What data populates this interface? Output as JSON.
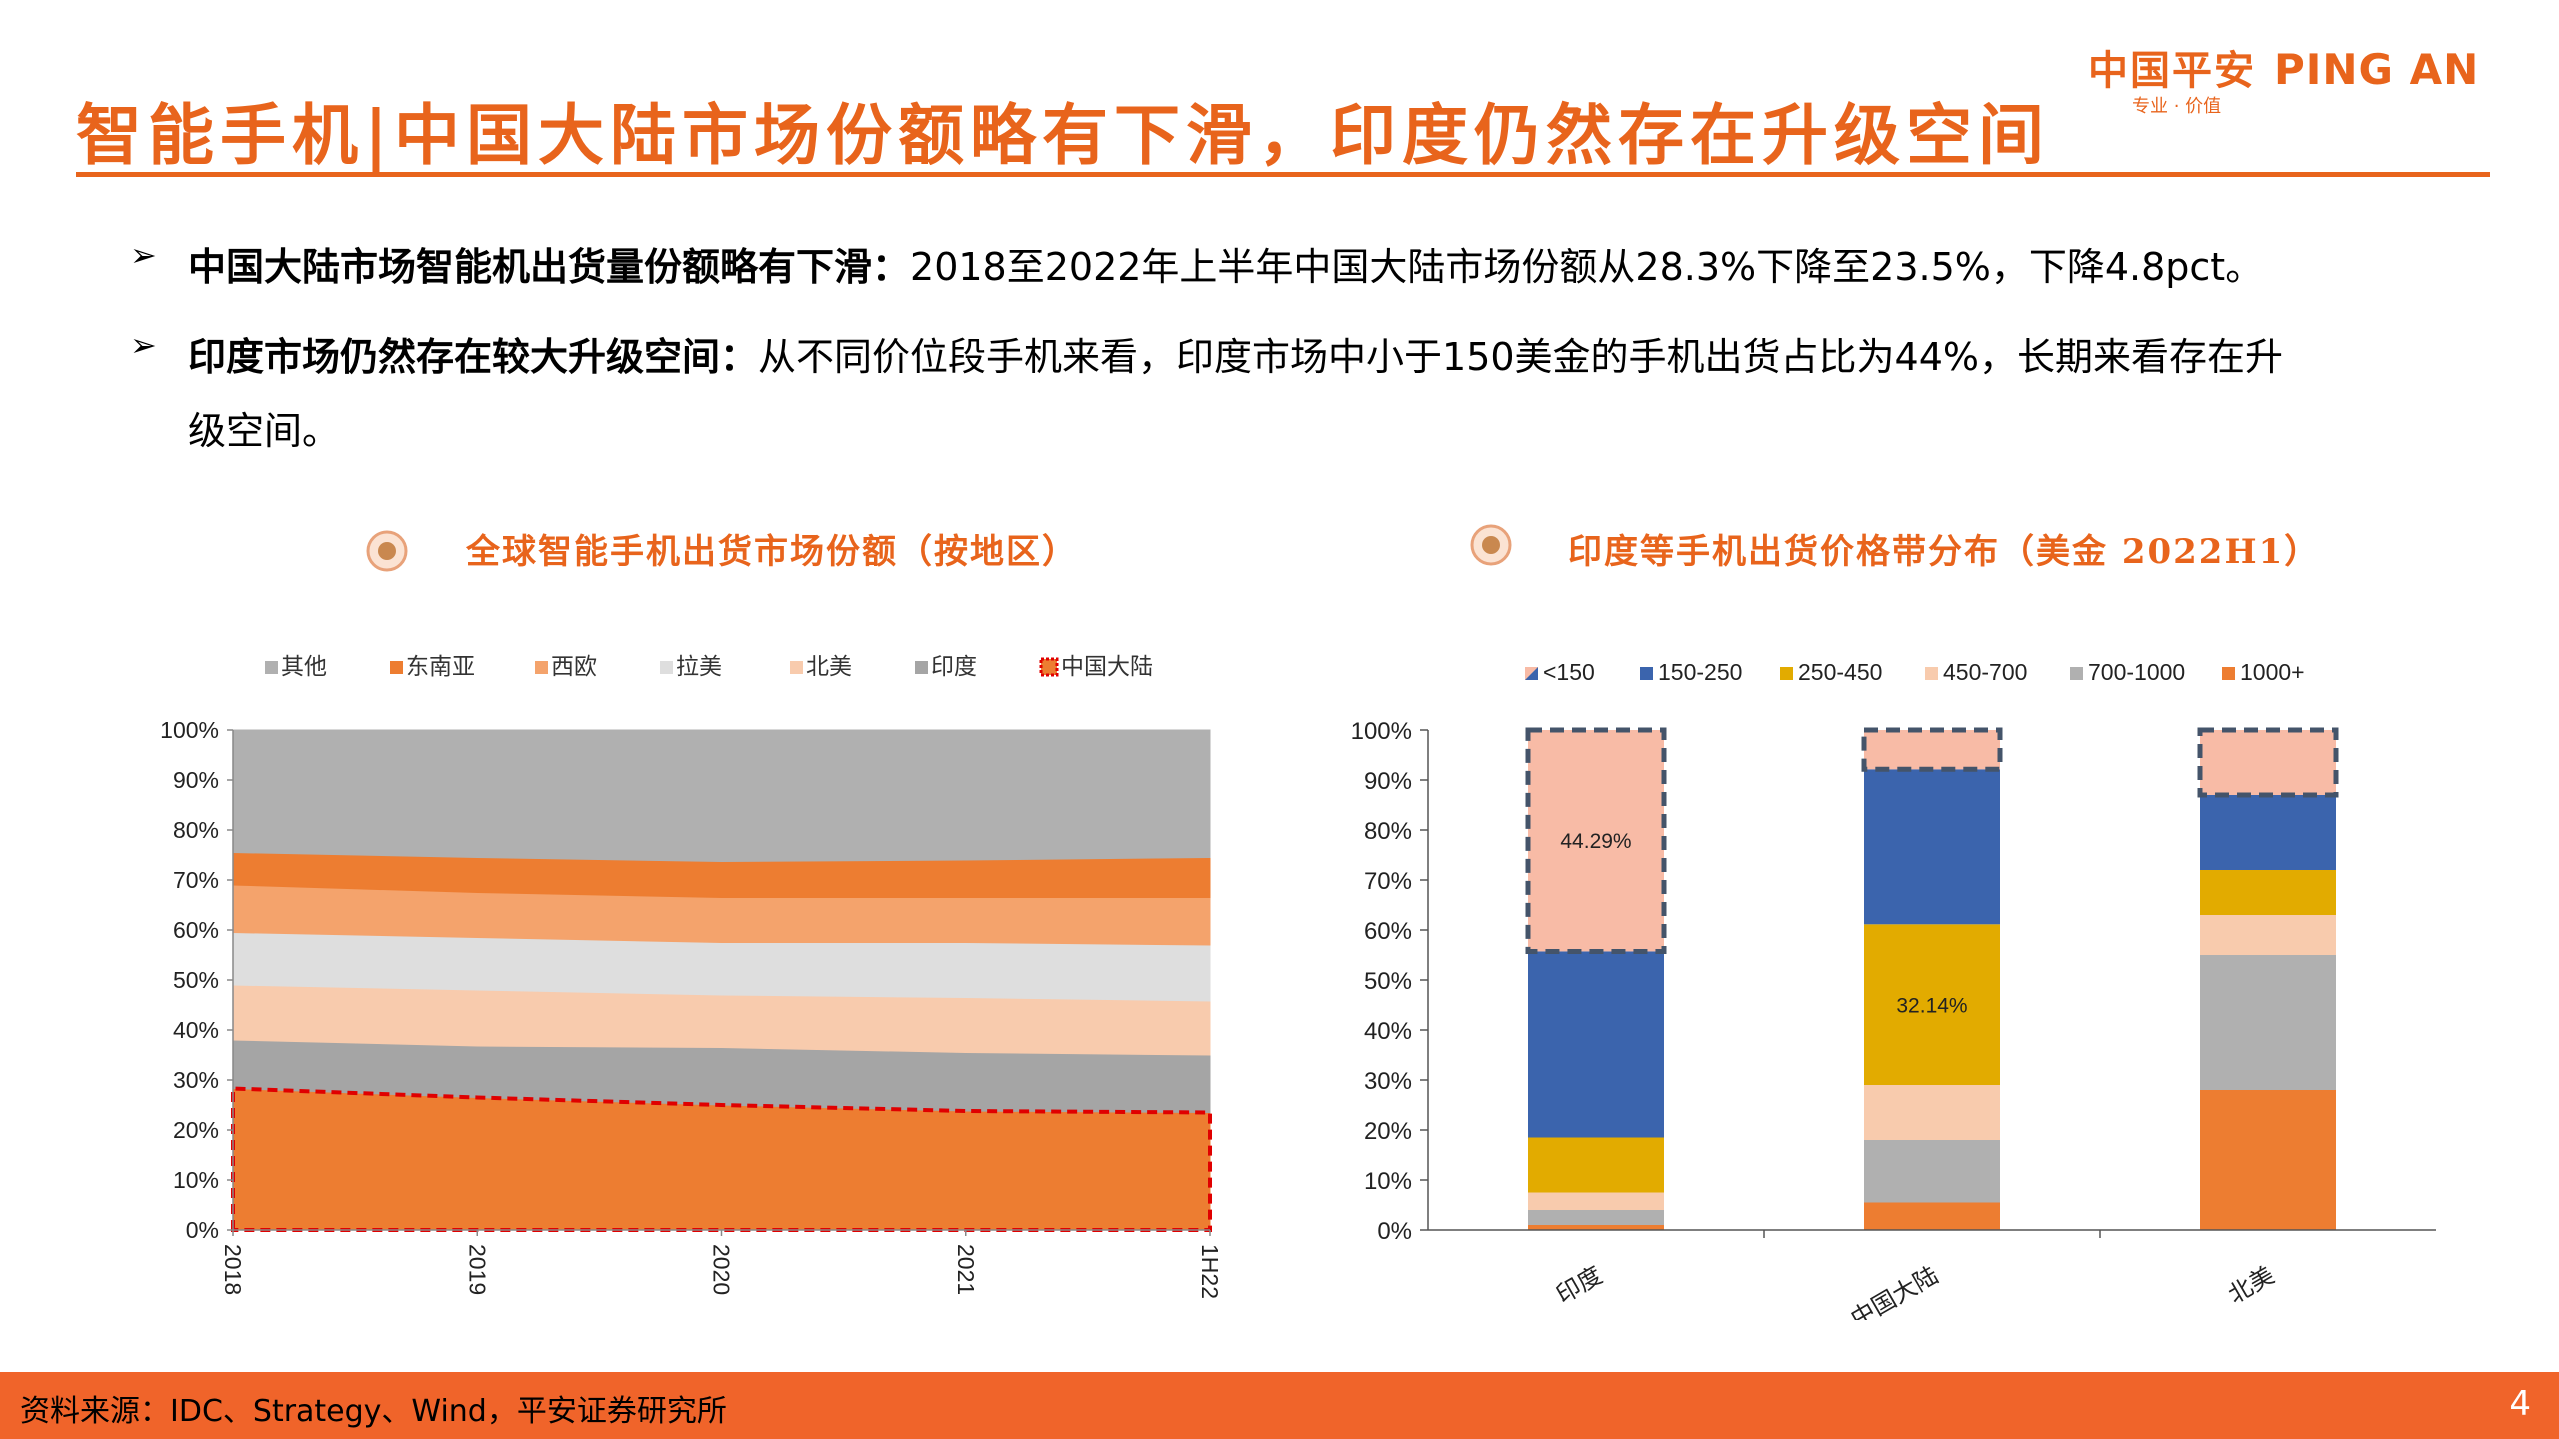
{
  "slide": {
    "title": "智能手机|中国大陆市场份额略有下滑，印度仍然存在升级空间",
    "logo_cn": "中国平安",
    "logo_en": "PING AN",
    "logo_tagline": "专业 · 价值",
    "bullets": [
      {
        "bold": "中国大陆市场智能机出货量份额略有下滑：",
        "text": "2018至2022年上半年中国大陆市场份额从28.3%下降至23.5%，下降4.8pct。"
      },
      {
        "bold": "印度市场仍然存在较大升级空间：",
        "text": "从不同价位段手机来看，印度市场中小于150美金的手机出货占比为44%，长期来看存在升",
        "text2": "级空间。"
      }
    ],
    "footer_source": "资料来源：IDC、Strategy、Wind，平安证券研究所",
    "page_number": "4",
    "colors": {
      "accent": "#e8641c",
      "footer": "#f0642a"
    }
  },
  "chart_data": [
    {
      "type": "area",
      "title": "全球智能手机出货市场份额（按地区）",
      "x": [
        "2018",
        "2019",
        "2020",
        "2021",
        "1H22"
      ],
      "ylim": [
        0,
        100
      ],
      "yticks": [
        "0%",
        "10%",
        "20%",
        "30%",
        "40%",
        "50%",
        "60%",
        "70%",
        "80%",
        "90%",
        "100%"
      ],
      "legend": [
        "其他",
        "东南亚",
        "西欧",
        "拉美",
        "北美",
        "印度",
        "中国大陆"
      ],
      "stack_order_bottom_to_top": [
        "中国大陆",
        "印度",
        "北美",
        "拉美",
        "西欧",
        "东南亚",
        "其他"
      ],
      "series": [
        {
          "name": "中国大陆",
          "color": "#ed7d31",
          "values": [
            28.3,
            26.5,
            25.0,
            23.8,
            23.5
          ]
        },
        {
          "name": "印度",
          "color": "#a5a5a5",
          "values": [
            9.7,
            10.3,
            11.5,
            11.7,
            11.5
          ]
        },
        {
          "name": "北美",
          "color": "#f8cbad",
          "values": [
            11.0,
            11.2,
            10.5,
            11.0,
            10.8
          ]
        },
        {
          "name": "拉美",
          "color": "#dedede",
          "values": [
            10.5,
            10.5,
            10.5,
            11.0,
            11.2
          ]
        },
        {
          "name": "西欧",
          "color": "#f4a36c",
          "values": [
            9.5,
            9.0,
            9.0,
            9.0,
            9.5
          ]
        },
        {
          "name": "东南亚",
          "color": "#ed7d31",
          "values": [
            6.5,
            7.0,
            7.2,
            7.5,
            8.0
          ]
        },
        {
          "name": "其他",
          "color": "#b0b0b0",
          "values": [
            24.5,
            25.5,
            26.3,
            26.0,
            25.5
          ]
        }
      ]
    },
    {
      "type": "bar",
      "stacked": true,
      "title": "印度等手机出货价格带分布（美金 2022H1）",
      "categories": [
        "印度",
        "中国大陆",
        "北美"
      ],
      "ylim": [
        0,
        100
      ],
      "yticks": [
        "0%",
        "10%",
        "20%",
        "30%",
        "40%",
        "50%",
        "60%",
        "70%",
        "80%",
        "90%",
        "100%"
      ],
      "legend": [
        "<150",
        "150-250",
        "250-450",
        "450-700",
        "700-1000",
        "1000+"
      ],
      "stack_order_bottom_to_top": [
        "1000+",
        "700-1000",
        "450-700",
        "250-450",
        "150-250",
        "<150"
      ],
      "series": [
        {
          "name": "1000+",
          "color": "#ed7d31",
          "values": [
            1.0,
            5.5,
            28.0
          ]
        },
        {
          "name": "700-1000",
          "color": "#b0b0b0",
          "values": [
            3.0,
            12.5,
            27.0
          ]
        },
        {
          "name": "450-700",
          "color": "#f8cbad",
          "values": [
            3.5,
            11.0,
            8.0
          ]
        },
        {
          "name": "250-450",
          "color": "#e2ab00",
          "values": [
            11.0,
            32.14,
            9.0
          ]
        },
        {
          "name": "150-250",
          "color": "#3b64ad",
          "values": [
            37.21,
            31.0,
            15.0
          ]
        },
        {
          "name": "<150",
          "color": "#f8bba6",
          "values": [
            44.29,
            7.86,
            13.0
          ]
        }
      ],
      "data_labels": [
        {
          "category": "印度",
          "series": "<150",
          "text": "44.29%"
        },
        {
          "category": "中国大陆",
          "series": "250-450",
          "text": "32.14%"
        }
      ]
    }
  ]
}
